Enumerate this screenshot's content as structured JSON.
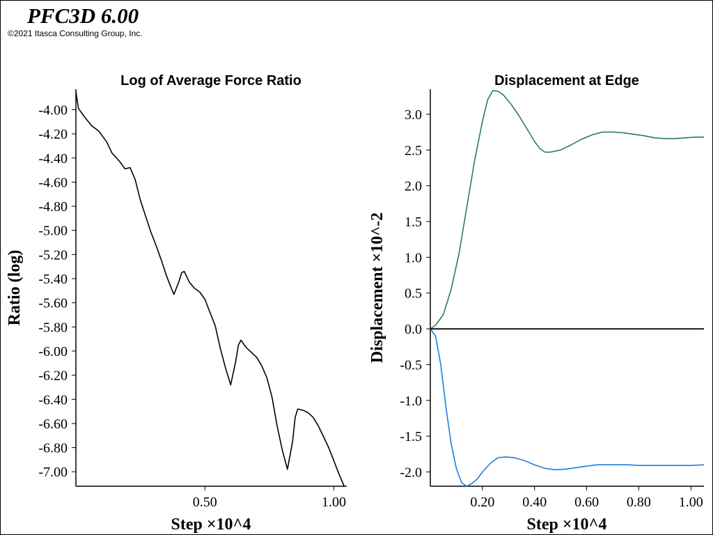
{
  "header": {
    "title": "PFC3D 6.00",
    "copyright": "©2021 Itasca Consulting Group, Inc."
  },
  "chart_data": [
    {
      "type": "line",
      "title": "Log of Average Force Ratio",
      "xlabel": "Step ×10^4",
      "ylabel": "Ratio (log)",
      "xlim": [
        0.0,
        1.05
      ],
      "ylim": [
        -7.12,
        -3.83
      ],
      "x_ticks": [
        0.5,
        1.0
      ],
      "x_tick_labels": [
        "0.50",
        "1.00"
      ],
      "y_ticks": [
        -4.0,
        -4.2,
        -4.4,
        -4.6,
        -4.8,
        -5.0,
        -5.2,
        -5.4,
        -5.6,
        -5.8,
        -6.0,
        -6.2,
        -6.4,
        -6.6,
        -6.8,
        -7.0
      ],
      "y_tick_labels": [
        "-4.00",
        "-4.20",
        "-4.40",
        "-4.60",
        "-4.80",
        "-5.00",
        "-5.20",
        "-5.40",
        "-5.60",
        "-5.80",
        "-6.00",
        "-6.20",
        "-6.40",
        "-6.60",
        "-6.80",
        "-7.00"
      ],
      "grid": false,
      "legend": "none",
      "series": [
        {
          "color": "#000000",
          "x": [
            0.0,
            0.01,
            0.03,
            0.06,
            0.09,
            0.12,
            0.14,
            0.17,
            0.19,
            0.21,
            0.23,
            0.25,
            0.27,
            0.29,
            0.31,
            0.33,
            0.35,
            0.37,
            0.38,
            0.4,
            0.41,
            0.42,
            0.44,
            0.46,
            0.48,
            0.5,
            0.52,
            0.54,
            0.56,
            0.58,
            0.6,
            0.62,
            0.63,
            0.64,
            0.66,
            0.68,
            0.7,
            0.72,
            0.74,
            0.76,
            0.78,
            0.8,
            0.82,
            0.84,
            0.85,
            0.86,
            0.88,
            0.9,
            0.92,
            0.94,
            0.96,
            0.98,
            1.0,
            1.02,
            1.04
          ],
          "y": [
            -3.85,
            -3.99,
            -4.05,
            -4.13,
            -4.18,
            -4.27,
            -4.36,
            -4.43,
            -4.49,
            -4.48,
            -4.58,
            -4.75,
            -4.88,
            -5.01,
            -5.12,
            -5.24,
            -5.37,
            -5.48,
            -5.53,
            -5.42,
            -5.35,
            -5.34,
            -5.43,
            -5.48,
            -5.51,
            -5.57,
            -5.68,
            -5.79,
            -5.98,
            -6.14,
            -6.28,
            -6.08,
            -5.95,
            -5.91,
            -5.97,
            -6.01,
            -6.05,
            -6.12,
            -6.22,
            -6.38,
            -6.62,
            -6.82,
            -6.98,
            -6.75,
            -6.55,
            -6.48,
            -6.49,
            -6.51,
            -6.55,
            -6.62,
            -6.71,
            -6.8,
            -6.91,
            -7.02,
            -7.12
          ]
        }
      ]
    },
    {
      "type": "line",
      "title": "Displacement at Edge",
      "xlabel": "Step ×10^4",
      "ylabel": "Displacement ×10^-2",
      "xlim": [
        0.0,
        1.05
      ],
      "ylim": [
        -2.2,
        3.35
      ],
      "x_ticks": [
        0.2,
        0.4,
        0.6,
        0.8,
        1.0
      ],
      "x_tick_labels": [
        "0.20",
        "0.40",
        "0.60",
        "0.80",
        "1.00"
      ],
      "y_ticks": [
        3.0,
        2.5,
        2.0,
        1.5,
        1.0,
        0.5,
        0.0,
        -0.5,
        -1.0,
        -1.5,
        -2.0
      ],
      "y_tick_labels": [
        "3.0",
        "2.5",
        "2.0",
        "1.5",
        "1.0",
        "0.5",
        "0.0",
        "-0.5",
        "-1.0",
        "-1.5",
        "-2.0"
      ],
      "grid": false,
      "legend": "none",
      "series": [
        {
          "color": "#2e7d4f",
          "x": [
            0.0,
            0.02,
            0.05,
            0.08,
            0.11,
            0.14,
            0.17,
            0.2,
            0.22,
            0.24,
            0.26,
            0.28,
            0.31,
            0.34,
            0.37,
            0.4,
            0.42,
            0.44,
            0.46,
            0.5,
            0.54,
            0.58,
            0.62,
            0.66,
            0.7,
            0.74,
            0.78,
            0.82,
            0.86,
            0.9,
            0.94,
            0.98,
            1.02,
            1.05
          ],
          "y": [
            0.0,
            0.05,
            0.2,
            0.55,
            1.05,
            1.7,
            2.35,
            2.9,
            3.2,
            3.33,
            3.32,
            3.27,
            3.14,
            2.98,
            2.8,
            2.62,
            2.52,
            2.47,
            2.47,
            2.5,
            2.57,
            2.65,
            2.71,
            2.75,
            2.75,
            2.74,
            2.72,
            2.7,
            2.67,
            2.66,
            2.66,
            2.67,
            2.68,
            2.68
          ]
        },
        {
          "color": "#1f7fd6",
          "x": [
            0.0,
            0.02,
            0.04,
            0.06,
            0.08,
            0.1,
            0.12,
            0.14,
            0.16,
            0.18,
            0.2,
            0.23,
            0.26,
            0.29,
            0.32,
            0.36,
            0.4,
            0.44,
            0.48,
            0.52,
            0.56,
            0.6,
            0.64,
            0.68,
            0.72,
            0.76,
            0.8,
            0.84,
            0.88,
            0.92,
            0.96,
            1.0,
            1.05
          ],
          "y": [
            0.0,
            -0.1,
            -0.5,
            -1.1,
            -1.6,
            -1.95,
            -2.15,
            -2.2,
            -2.16,
            -2.1,
            -2.0,
            -1.88,
            -1.8,
            -1.79,
            -1.8,
            -1.84,
            -1.9,
            -1.95,
            -1.97,
            -1.96,
            -1.94,
            -1.92,
            -1.9,
            -1.9,
            -1.9,
            -1.9,
            -1.91,
            -1.91,
            -1.91,
            -1.91,
            -1.91,
            -1.91,
            -1.9
          ]
        },
        {
          "color": "#000000",
          "x": [
            0.0,
            1.05
          ],
          "y": [
            0.0,
            0.0
          ]
        }
      ]
    }
  ]
}
